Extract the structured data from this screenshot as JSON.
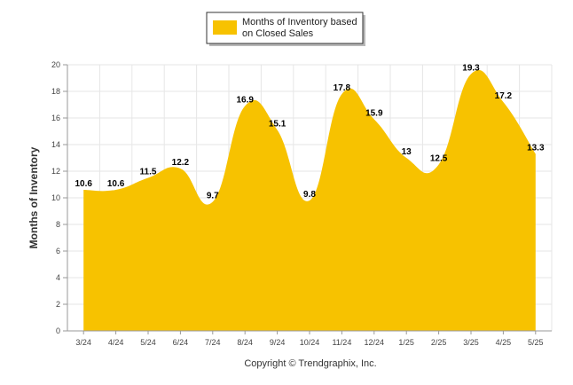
{
  "chart_data": {
    "type": "area",
    "legend": {
      "label_line1": "Months of Inventory based",
      "label_line2": "on Closed Sales",
      "placement": "top-center"
    },
    "ylabel": "Months of Inventory",
    "xlabel": "",
    "ylim": [
      0,
      20
    ],
    "yticks": [
      0,
      2,
      4,
      6,
      8,
      10,
      12,
      14,
      16,
      18,
      20
    ],
    "categories": [
      "3/24",
      "4/24",
      "5/24",
      "6/24",
      "7/24",
      "8/24",
      "9/24",
      "10/24",
      "11/24",
      "12/24",
      "1/25",
      "2/25",
      "3/25",
      "4/25",
      "5/25"
    ],
    "series": [
      {
        "name": "Months of Inventory based on Closed Sales",
        "values": [
          10.6,
          10.6,
          11.5,
          12.2,
          9.7,
          16.9,
          15.1,
          9.8,
          17.8,
          15.9,
          13,
          12.5,
          19.3,
          17.2,
          13.3
        ],
        "labels": [
          "10.6",
          "10.6",
          "11.5",
          "12.2",
          "9.7",
          "16.9",
          "15.1",
          "9.8",
          "17.8",
          "15.9",
          "13",
          "12.5",
          "19.3",
          "17.2",
          "13.3"
        ]
      }
    ],
    "grid": true,
    "colors": {
      "fill": "#F7C200",
      "grid": "#e6e6e6",
      "axis": "#999999"
    }
  },
  "footer": {
    "copyright": "Copyright © Trendgraphix, Inc."
  }
}
